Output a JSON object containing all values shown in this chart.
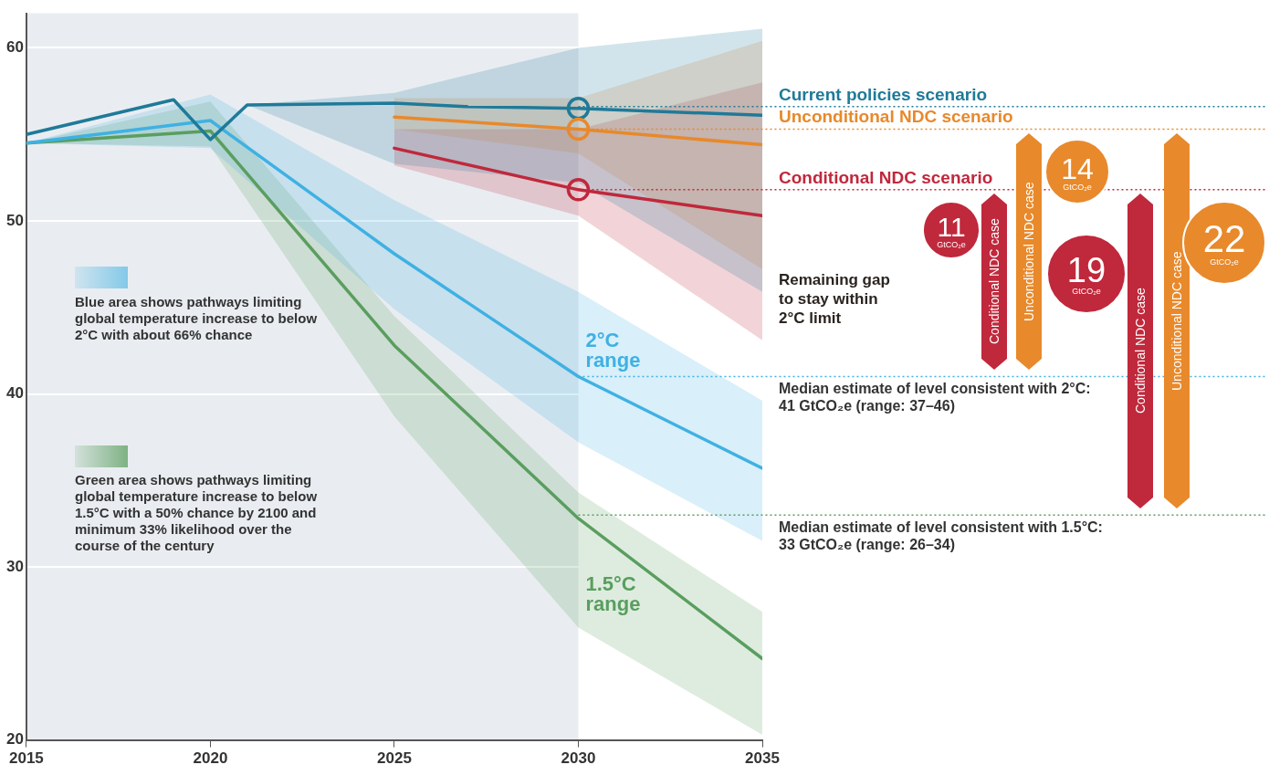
{
  "chart_data": {
    "type": "line",
    "xlim": [
      2015,
      2035
    ],
    "xticks": [
      2015,
      2020,
      2025,
      2030,
      2035
    ],
    "ylim": [
      20,
      62
    ],
    "yticks": [
      20,
      30,
      40,
      50,
      60
    ],
    "grid": "y",
    "marker": "none",
    "line_style": "solid",
    "bands": [
      {
        "axis": "x",
        "from": 2015,
        "to": 2030,
        "color": "#e9edf1"
      }
    ],
    "series": [
      {
        "color": "#1f7a99",
        "x": [
          2015,
          2019,
          2020,
          2021,
          2025,
          2027,
          2030,
          2035
        ],
        "values": [
          55,
          57,
          54.7,
          56.7,
          56.8,
          56.6,
          56.5,
          56.1
        ],
        "lower": [
          null,
          null,
          null,
          56.7,
          53.3,
          null,
          52.2,
          45.9
        ],
        "upper": [
          null,
          null,
          null,
          56.7,
          57.4,
          null,
          60.0,
          61.1
        ]
      },
      {
        "color": "#e8892b",
        "x": [
          2025,
          2030,
          2035
        ],
        "values": [
          56.0,
          55.3,
          54.4
        ],
        "lower": [
          55.3,
          53.9,
          47.2
        ],
        "upper": [
          57.1,
          57.1,
          60.4
        ]
      },
      {
        "color": "#c0283c",
        "x": [
          2025,
          2030,
          2035
        ],
        "values": [
          54.2,
          51.8,
          50.3
        ],
        "lower": [
          53.2,
          50.3,
          43.1
        ],
        "upper": [
          55.3,
          55.3,
          58.0
        ]
      },
      {
        "name": "2°C range",
        "color": "#3fb1e3",
        "x": [
          2015,
          2020,
          2025,
          2030,
          2035
        ],
        "values": [
          54.5,
          55.8,
          48.1,
          41.0,
          35.7
        ],
        "lower": [
          54.5,
          54.2,
          44.9,
          37.2,
          31.5
        ],
        "upper": [
          54.5,
          57.3,
          51.2,
          45.9,
          39.6
        ]
      },
      {
        "name": "1.5°C range",
        "color": "#5a9e5f",
        "x": [
          2015,
          2020,
          2025,
          2030,
          2035
        ],
        "values": [
          54.5,
          55.2,
          42.8,
          32.8,
          24.7
        ],
        "lower": [
          54.5,
          54.3,
          38.7,
          26.5,
          20.3
        ],
        "upper": [
          54.5,
          56.9,
          44.5,
          34.3,
          27.4
        ]
      },
      {
        "type": "scatter",
        "marker": "circle",
        "x": [
          2030,
          2030,
          2030
        ],
        "values": [
          56.5,
          55.3,
          51.8
        ],
        "colors": [
          "#1f7a99",
          "#e8892b",
          "#c0283c"
        ]
      }
    ],
    "ref_lines": [
      {
        "axis": "y",
        "value": 56.6,
        "label": "Current policies scenario",
        "color": "#1f7a99",
        "line_style": "dotted"
      },
      {
        "axis": "y",
        "value": 55.3,
        "label": "Unconditional NDC scenario",
        "color": "#e8892b",
        "line_style": "dotted"
      },
      {
        "axis": "y",
        "value": 51.8,
        "label": "Conditional NDC scenario",
        "color": "#c0283c",
        "line_style": "dotted"
      },
      {
        "axis": "y",
        "value": 41,
        "label": "Median estimate of level consistent with 2°C: 41 GtCO₂e (range: 37–46)",
        "color": "#3fb1e3",
        "line_style": "dotted"
      },
      {
        "axis": "y",
        "value": 33,
        "label": "Median estimate of level consistent with 1.5°C: 33 GtCO₂e (range: 26–34)",
        "color": "#5a9e5f",
        "line_style": "dotted"
      }
    ],
    "annotations": [
      "Blue area shows pathways limiting global temperature increase to below 2°C with about 66% chance",
      "Green area shows pathways limiting global temperature increase to below 1.5°C with a 50% chance by 2100 and minimum 33% likelihood over the course of the century",
      "Remaining gap to stay within 2°C limit",
      "Conditional NDC case",
      "Unconditional NDC case",
      "Conditional NDC case",
      "Unconditional NDC case",
      "11 GtCO₂e",
      "14 GtCO₂e",
      "19 GtCO₂e",
      "22 GtCO₂e"
    ]
  }
}
